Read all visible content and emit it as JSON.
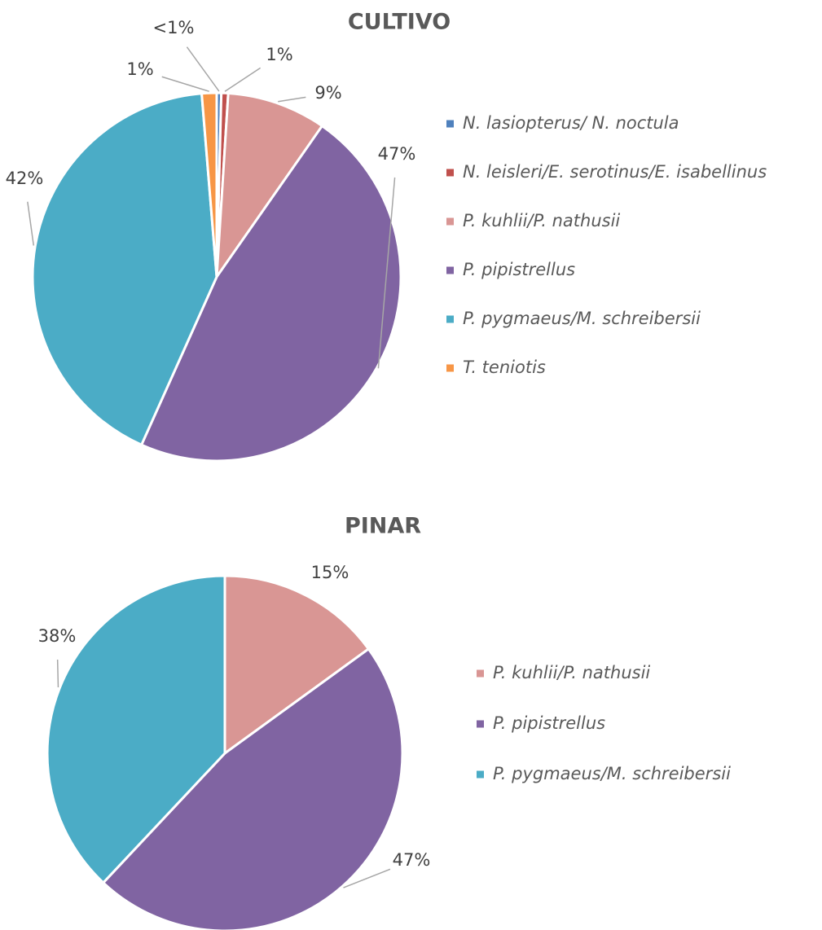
{
  "chart_data": [
    {
      "type": "pie",
      "title": "CULTIVO",
      "categories": [
        "N. lasiopterus/ N. noctula",
        "N. leisleri/E. serotinus/E. isabellinus",
        "P. kuhlii/P. nathusii",
        "P. pipistrellus",
        "P. pygmaeus/M. schreibersii",
        "T. teniotis"
      ],
      "values": [
        0.4,
        0.6,
        8.7,
        47,
        42,
        1.3
      ],
      "value_labels": [
        "<1%",
        "1%",
        "9%",
        "47%",
        "42%",
        "1%"
      ],
      "colors": [
        "#4f81bd",
        "#c0504d",
        "#d99694",
        "#8064a2",
        "#4bacc6",
        "#f79646"
      ],
      "legend": "right"
    },
    {
      "type": "pie",
      "title": "PINAR",
      "categories": [
        "P. kuhlii/P. nathusii",
        "P. pipistrellus",
        "P. pygmaeus/M. schreibersii"
      ],
      "values": [
        15,
        47,
        38
      ],
      "value_labels": [
        "15%",
        "47%",
        "38%"
      ],
      "colors": [
        "#d99694",
        "#8064a2",
        "#4bacc6"
      ],
      "legend": "right"
    }
  ]
}
